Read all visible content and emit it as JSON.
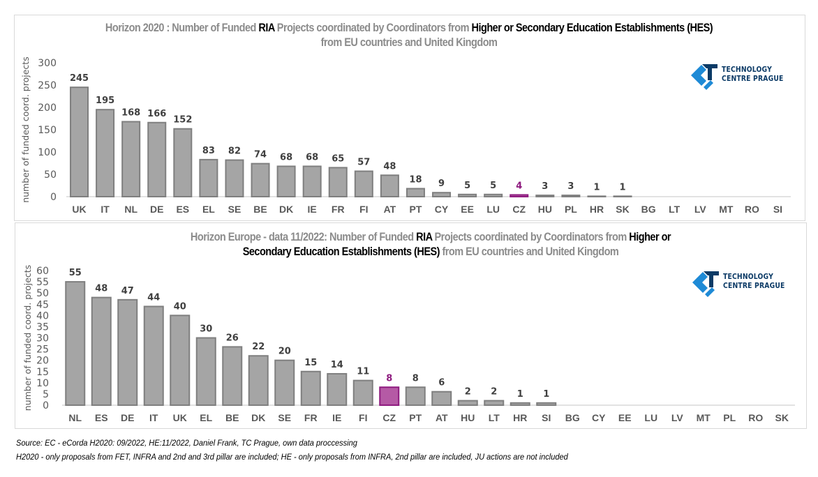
{
  "chart_data": [
    {
      "type": "bar",
      "title_parts": [
        {
          "text": "Horizon 2020 : Number of Funded ",
          "highlight": false
        },
        {
          "text": "RIA",
          "highlight": true
        },
        {
          "text": " Projects coordinated by Coordinators from ",
          "highlight": false
        },
        {
          "text": "Higher or Secondary Education Establishments (HES)",
          "highlight": true
        },
        {
          "text": " from EU countries and United Kingdom",
          "highlight": false
        }
      ],
      "xlabel": "",
      "ylabel": "number of funded coord. projects",
      "ylim": [
        0,
        300
      ],
      "yticks": [
        0,
        50,
        100,
        150,
        200,
        250,
        300
      ],
      "grid": false,
      "highlight_category": "CZ",
      "categories": [
        "UK",
        "IT",
        "NL",
        "DE",
        "ES",
        "EL",
        "SE",
        "BE",
        "DK",
        "IE",
        "FR",
        "FI",
        "AT",
        "PT",
        "CY",
        "EE",
        "LU",
        "CZ",
        "HU",
        "PL",
        "HR",
        "SK",
        "BG",
        "LT",
        "LV",
        "MT",
        "RO",
        "SI"
      ],
      "values": [
        245,
        195,
        168,
        166,
        152,
        83,
        82,
        74,
        68,
        68,
        65,
        57,
        48,
        18,
        9,
        5,
        5,
        4,
        3,
        3,
        1,
        1,
        0,
        0,
        0,
        0,
        0,
        0
      ],
      "show_labels": [
        true,
        true,
        true,
        true,
        true,
        true,
        true,
        true,
        true,
        true,
        true,
        true,
        true,
        true,
        true,
        true,
        true,
        true,
        true,
        true,
        true,
        true,
        false,
        false,
        false,
        false,
        false,
        false
      ]
    },
    {
      "type": "bar",
      "title_parts": [
        {
          "text": "Horizon Europe - data 11/2022: Number of Funded ",
          "highlight": false
        },
        {
          "text": "RIA",
          "highlight": true
        },
        {
          "text": " Projects coordinated by Coordinators from ",
          "highlight": false
        },
        {
          "text": "Higher or Secondary Education Establishments (HES)",
          "highlight": true
        },
        {
          "text": " from EU countries and United Kingdom",
          "highlight": false
        }
      ],
      "xlabel": "",
      "ylabel": "number of funded coord. projects",
      "ylim": [
        0,
        60
      ],
      "yticks": [
        0,
        5,
        10,
        15,
        20,
        25,
        30,
        35,
        40,
        45,
        50,
        55,
        60
      ],
      "grid": false,
      "highlight_category": "CZ",
      "categories": [
        "NL",
        "ES",
        "DE",
        "IT",
        "UK",
        "EL",
        "BE",
        "DK",
        "SE",
        "FR",
        "IE",
        "FI",
        "CZ",
        "PT",
        "AT",
        "HU",
        "LT",
        "HR",
        "SI",
        "BG",
        "CY",
        "EE",
        "LU",
        "LV",
        "MT",
        "PL",
        "RO",
        "SK"
      ],
      "values": [
        55,
        48,
        47,
        44,
        40,
        30,
        26,
        22,
        20,
        15,
        14,
        11,
        8,
        8,
        6,
        2,
        2,
        1,
        1,
        0,
        0,
        0,
        0,
        0,
        0,
        0,
        0,
        0
      ],
      "show_labels": [
        true,
        true,
        true,
        true,
        true,
        true,
        true,
        true,
        true,
        true,
        true,
        true,
        true,
        true,
        true,
        true,
        true,
        true,
        true,
        false,
        false,
        false,
        false,
        false,
        false,
        false,
        false,
        false
      ]
    }
  ],
  "colors": {
    "bar_fill": "#a5a5a5",
    "bar_stroke": "#7f7f7f",
    "highlight_fill": "#b55aa5",
    "highlight_stroke": "#8e1b7f",
    "highlight_label": "#8e1b7f",
    "title_grey": "#8c8c8c",
    "title_highlight": "#000000",
    "logo_dark": "#0b3a66",
    "logo_light": "#1e8ad6"
  },
  "logo": {
    "line1": "TECHNOLOGY",
    "line2": "CENTRE PRAGUE"
  },
  "footnotes": {
    "source": "Source: EC -  eCorda H2020: 09/2022, HE:11/2022, Daniel Frank, TC Prague, own data proccessing",
    "note": "H2020 - only proposals from FET,  INFRA and  2nd and 3rd pillar are included; HE - only proposals from INFRA, 2nd pillar are included, JU actions are not included"
  }
}
